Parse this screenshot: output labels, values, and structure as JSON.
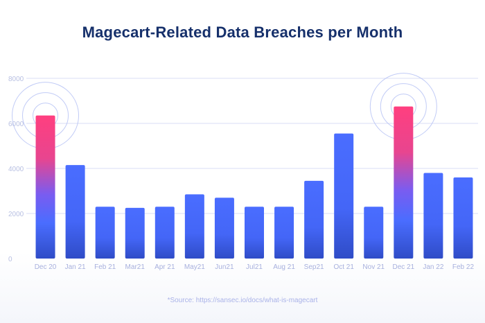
{
  "chart_data": {
    "type": "bar",
    "title": "Magecart-Related Data Breaches per Month",
    "xlabel": "",
    "ylabel": "",
    "ylim": [
      0,
      8000
    ],
    "yticks": [
      0,
      2000,
      4000,
      6000,
      8000
    ],
    "grid": true,
    "categories": [
      "Dec 20",
      "Jan 21",
      "Feb 21",
      "Mar21",
      "Apr 21",
      "May21",
      "Jun21",
      "Jul21",
      "Aug 21",
      "Sep21",
      "Oct 21",
      "Nov 21",
      "Dec 21",
      "Jan 22",
      "Feb 22"
    ],
    "values": [
      6350,
      4150,
      2300,
      2250,
      2300,
      2850,
      2700,
      2300,
      2300,
      3450,
      5550,
      2300,
      6750,
      3800,
      3600
    ],
    "highlighted": [
      "Dec 20",
      "Dec 21"
    ],
    "colors": {
      "bar_top": "#4a6dff",
      "bar_bottom": "#2f4cc7",
      "highlight_top": "#ff3f7f",
      "highlight_mid": "#8a55e6",
      "grid": "#d9def5",
      "ring": "#b6c2f5"
    }
  },
  "source": "*Source: https://sansec.io/docs/what-is-magecart"
}
